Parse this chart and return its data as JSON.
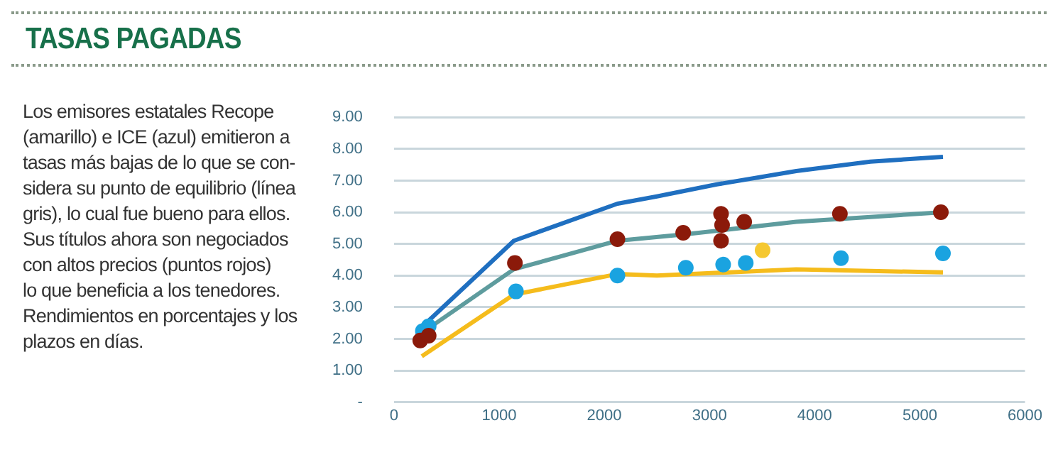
{
  "chart_data": {
    "type": "scatter",
    "title": "TASAS PAGADAS",
    "subtitle": "Los emisores estatales Recope\n(amarillo) e ICE (azul) emitieron a\ntasas más bajas de lo que se con-\nsidera su punto de equilibrio (línea\ngris), lo cual fue bueno para ellos.\nSus títulos ahora son negociados\ncon altos precios (puntos rojos)\nlo que beneficia a los tenedores.\nRendimientos en porcentajes y los\nplazos en días.",
    "series": [
      {
        "type": "line",
        "color": "#1f6fc0",
        "marker": "none",
        "x": [
          305,
          1140,
          2125,
          2500,
          3070,
          3825,
          4530,
          5220
        ],
        "values": [
          2.5,
          5.1,
          6.27,
          6.5,
          6.88,
          7.3,
          7.6,
          7.75
        ]
      },
      {
        "type": "line",
        "color": "#5e9c9e",
        "marker": "none",
        "x": [
          270,
          1140,
          2125,
          2760,
          3825,
          5220
        ],
        "values": [
          2.2,
          4.2,
          5.1,
          5.3,
          5.7,
          6.0
        ]
      },
      {
        "type": "line",
        "color": "#f5bc1c",
        "marker": "none",
        "x": [
          265,
          1140,
          2125,
          2500,
          3825,
          5220
        ],
        "values": [
          1.45,
          3.4,
          4.05,
          4.0,
          4.2,
          4.1
        ]
      },
      {
        "type": "scatter",
        "color": "#8b1a0a",
        "marker": "circle",
        "x": [
          250,
          330,
          1150,
          2125,
          2750,
          3110,
          3120,
          3110,
          3330,
          4240,
          5200
        ],
        "values": [
          1.95,
          2.1,
          4.4,
          5.15,
          5.35,
          5.95,
          5.6,
          5.1,
          5.7,
          5.95,
          6.0
        ]
      },
      {
        "type": "scatter",
        "color": "#1aa3e0",
        "marker": "circle",
        "x": [
          275,
          330,
          1160,
          2125,
          2775,
          3130,
          3345,
          4250,
          5220
        ],
        "values": [
          2.25,
          2.4,
          3.5,
          4.0,
          4.25,
          4.35,
          4.4,
          4.55,
          4.7
        ]
      },
      {
        "type": "scatter",
        "color": "#f5c830",
        "marker": "circle",
        "x": [
          3505
        ],
        "values": [
          4.8
        ]
      }
    ],
    "xlim": [
      0,
      6000
    ],
    "xticks": [
      0,
      1000,
      2000,
      3000,
      4000,
      5000,
      6000
    ],
    "ylim": [
      0,
      9
    ],
    "yticks": [
      {
        "value": 0,
        "label": "-"
      },
      {
        "value": 1,
        "label": "1.00"
      },
      {
        "value": 2,
        "label": "2.00"
      },
      {
        "value": 3,
        "label": "3.00"
      },
      {
        "value": 4,
        "label": "4.00"
      },
      {
        "value": 5,
        "label": "5.00"
      },
      {
        "value": 6,
        "label": "6.00"
      },
      {
        "value": 7,
        "label": "7.00"
      },
      {
        "value": 8,
        "label": "8.00"
      },
      {
        "value": 9,
        "label": "9.00"
      }
    ],
    "grid": "y",
    "legend": false
  }
}
